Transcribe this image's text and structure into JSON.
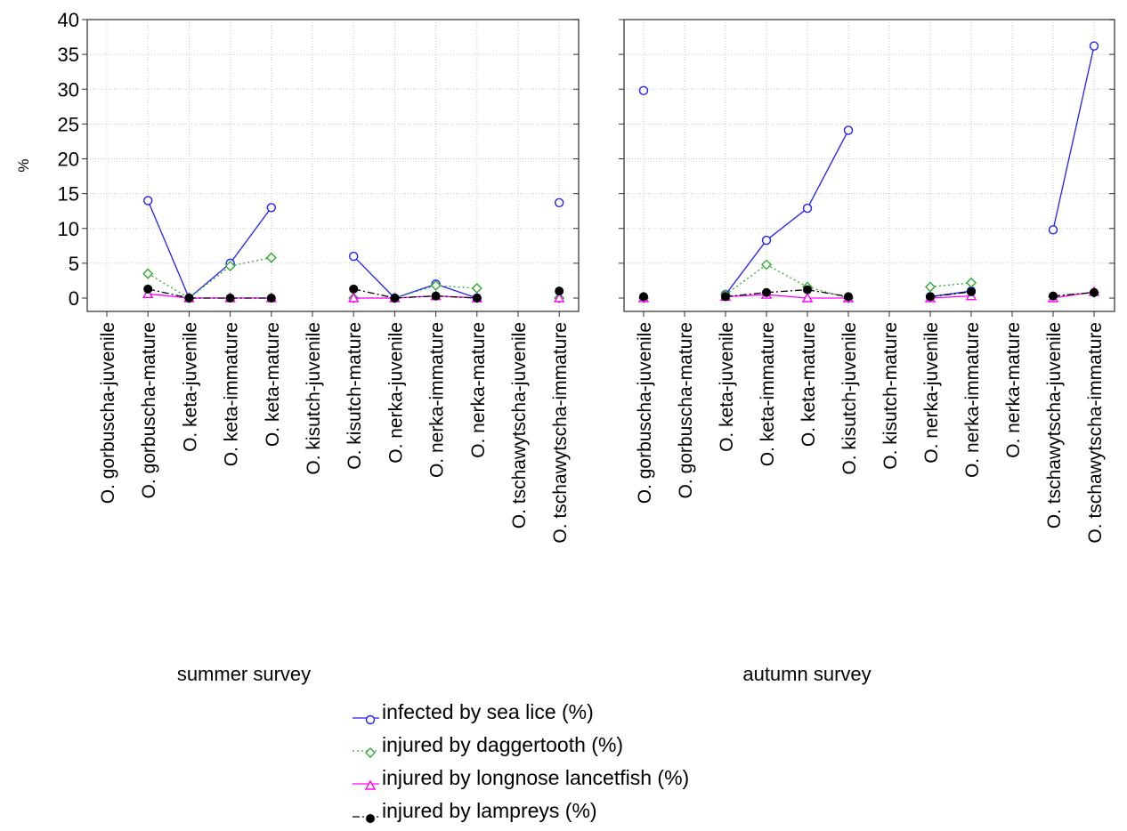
{
  "chart_data": {
    "type": "line",
    "ylabel": "%",
    "ylim": [
      0,
      40
    ],
    "yticks": [
      "0",
      "5",
      "10",
      "15",
      "20",
      "25",
      "30",
      "35",
      "40"
    ],
    "grid": true,
    "legend_position": "bottom-center",
    "series_meta": [
      {
        "name": "infected by sea lice (%)",
        "color": "#1f1fff",
        "dash": "solid",
        "marker": "circle"
      },
      {
        "name": "injured by daggertooth (%)",
        "color": "#2eaa2e",
        "dash": "dotted",
        "marker": "diamond"
      },
      {
        "name": "injured by longnose lancetfish (%)",
        "color": "#ff00ff",
        "dash": "solid",
        "marker": "triangle"
      },
      {
        "name": "injured by lampreys (%)",
        "color": "#000000",
        "dash": "dashdot",
        "marker": "dot"
      }
    ],
    "panels": [
      {
        "title": "summer survey",
        "categories": [
          "O. gorbuscha-juvenile",
          "O. gorbuscha-mature",
          "O. keta-juvenile",
          "O. keta-immature",
          "O. keta-mature",
          "O. kisutch-juvenile",
          "O. kisutch-mature",
          "O. nerka-juvenile",
          "O. nerka-immature",
          "O. nerka-mature",
          "O. tschawytscha-juvenile",
          "O. tschawytscha-immature"
        ],
        "series": [
          {
            "name": "infected by sea lice (%)",
            "values": [
              null,
              14.0,
              0.0,
              5.0,
              13.0,
              null,
              6.0,
              0.0,
              2.0,
              0.0,
              null,
              13.7
            ]
          },
          {
            "name": "injured by daggertooth (%)",
            "values": [
              null,
              3.5,
              0.0,
              4.6,
              5.8,
              null,
              0.0,
              0.0,
              1.8,
              1.4,
              null,
              0.0
            ]
          },
          {
            "name": "injured by longnose lancetfish (%)",
            "values": [
              null,
              0.6,
              0.0,
              0.0,
              0.0,
              null,
              0.0,
              0.0,
              0.3,
              0.0,
              null,
              0.0
            ]
          },
          {
            "name": "injured by lampreys (%)",
            "values": [
              null,
              1.3,
              0.0,
              0.0,
              0.0,
              null,
              1.3,
              0.0,
              0.3,
              0.0,
              null,
              1.0
            ]
          }
        ]
      },
      {
        "title": "autumn survey",
        "categories": [
          "O. gorbuscha-juvenile",
          "O. gorbuscha-mature",
          "O. keta-juvenile",
          "O. keta-immature",
          "O. keta-mature",
          "O. kisutch-juvenile",
          "O. kisutch-mature",
          "O. nerka-juvenile",
          "O. nerka-immature",
          "O. nerka-mature",
          "O. tschawytscha-juvenile",
          "O. tschawytscha-immature"
        ],
        "series": [
          {
            "name": "infected by sea lice (%)",
            "values": [
              29.8,
              null,
              0.5,
              8.3,
              12.9,
              24.1,
              null,
              0.2,
              1.0,
              null,
              9.8,
              36.2
            ]
          },
          {
            "name": "injured by daggertooth (%)",
            "values": [
              0.0,
              null,
              0.5,
              4.8,
              1.6,
              0.0,
              null,
              1.6,
              2.2,
              null,
              0.2,
              0.8
            ]
          },
          {
            "name": "injured by longnose lancetfish (%)",
            "values": [
              0.0,
              null,
              0.2,
              0.5,
              0.0,
              0.0,
              null,
              0.0,
              0.3,
              null,
              0.0,
              0.9
            ]
          },
          {
            "name": "injured by lampreys (%)",
            "values": [
              0.2,
              null,
              0.2,
              0.8,
              1.2,
              0.2,
              null,
              0.2,
              0.9,
              null,
              0.3,
              0.8
            ]
          }
        ]
      }
    ]
  }
}
